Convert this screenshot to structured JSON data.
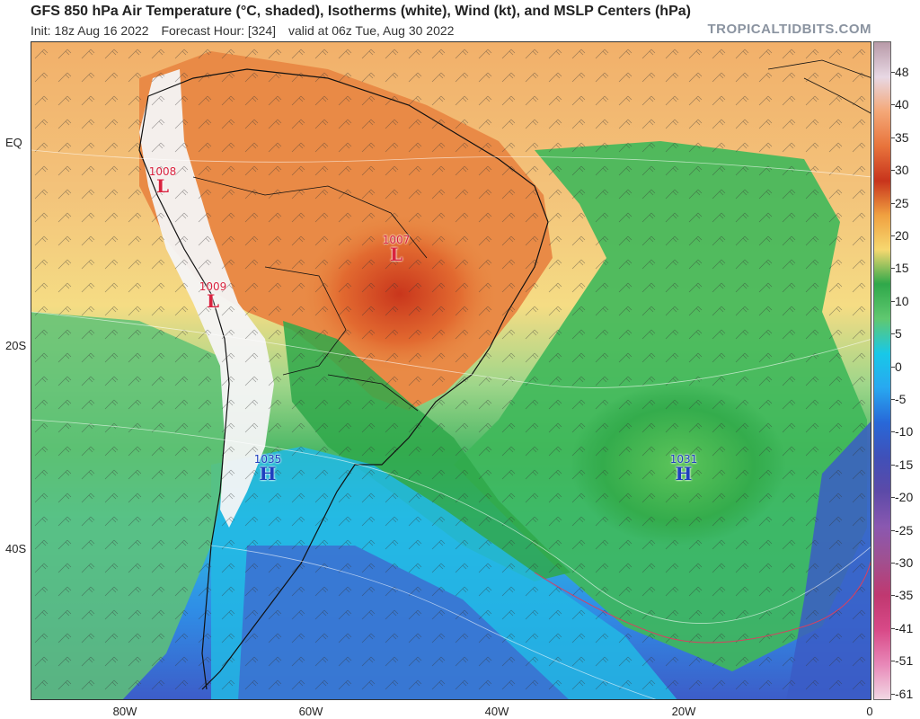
{
  "header": {
    "title": "GFS 850 hPa Air Temperature (°C, shaded), Isotherms (white), Wind (kt), and MSLP Centers (hPa)",
    "init": "Init: 18z Aug 16 2022",
    "forecast_hour": "Forecast Hour: [324]",
    "valid": "valid at 06z Tue, Aug 30 2022",
    "brand": "TROPICALTIDBITS.COM"
  },
  "axes": {
    "lat_labels": [
      "EQ",
      "20S",
      "40S"
    ],
    "lon_labels": [
      "80W",
      "60W",
      "40W",
      "20W",
      "0"
    ]
  },
  "colorbar": {
    "labels": [
      "48",
      "40",
      "35",
      "30",
      "25",
      "20",
      "15",
      "10",
      "5",
      "0",
      "-5",
      "-10",
      "-15",
      "-20",
      "-25",
      "-30",
      "-35",
      "-41",
      "-51",
      "-61"
    ],
    "colors": [
      "#b89aa8",
      "#e8d8e4",
      "#f4a878",
      "#e8743c",
      "#c8341c",
      "#f0a040",
      "#f6d870",
      "#2fa84a",
      "#60c870",
      "#18c8e8",
      "#28a8f0",
      "#2868d8",
      "#4050b8",
      "#5c4aa8",
      "#8a58b0",
      "#a05090",
      "#c03870",
      "#d84a88",
      "#e888b8",
      "#f2d8e4"
    ]
  },
  "pressure_centers": [
    {
      "type": "low",
      "letter": "L",
      "value": "1008"
    },
    {
      "type": "low",
      "letter": "L",
      "value": "1007"
    },
    {
      "type": "low",
      "letter": "L",
      "value": "1009"
    },
    {
      "type": "high",
      "letter": "H",
      "value": "1035"
    },
    {
      "type": "high",
      "letter": "H",
      "value": "1031"
    }
  ]
}
